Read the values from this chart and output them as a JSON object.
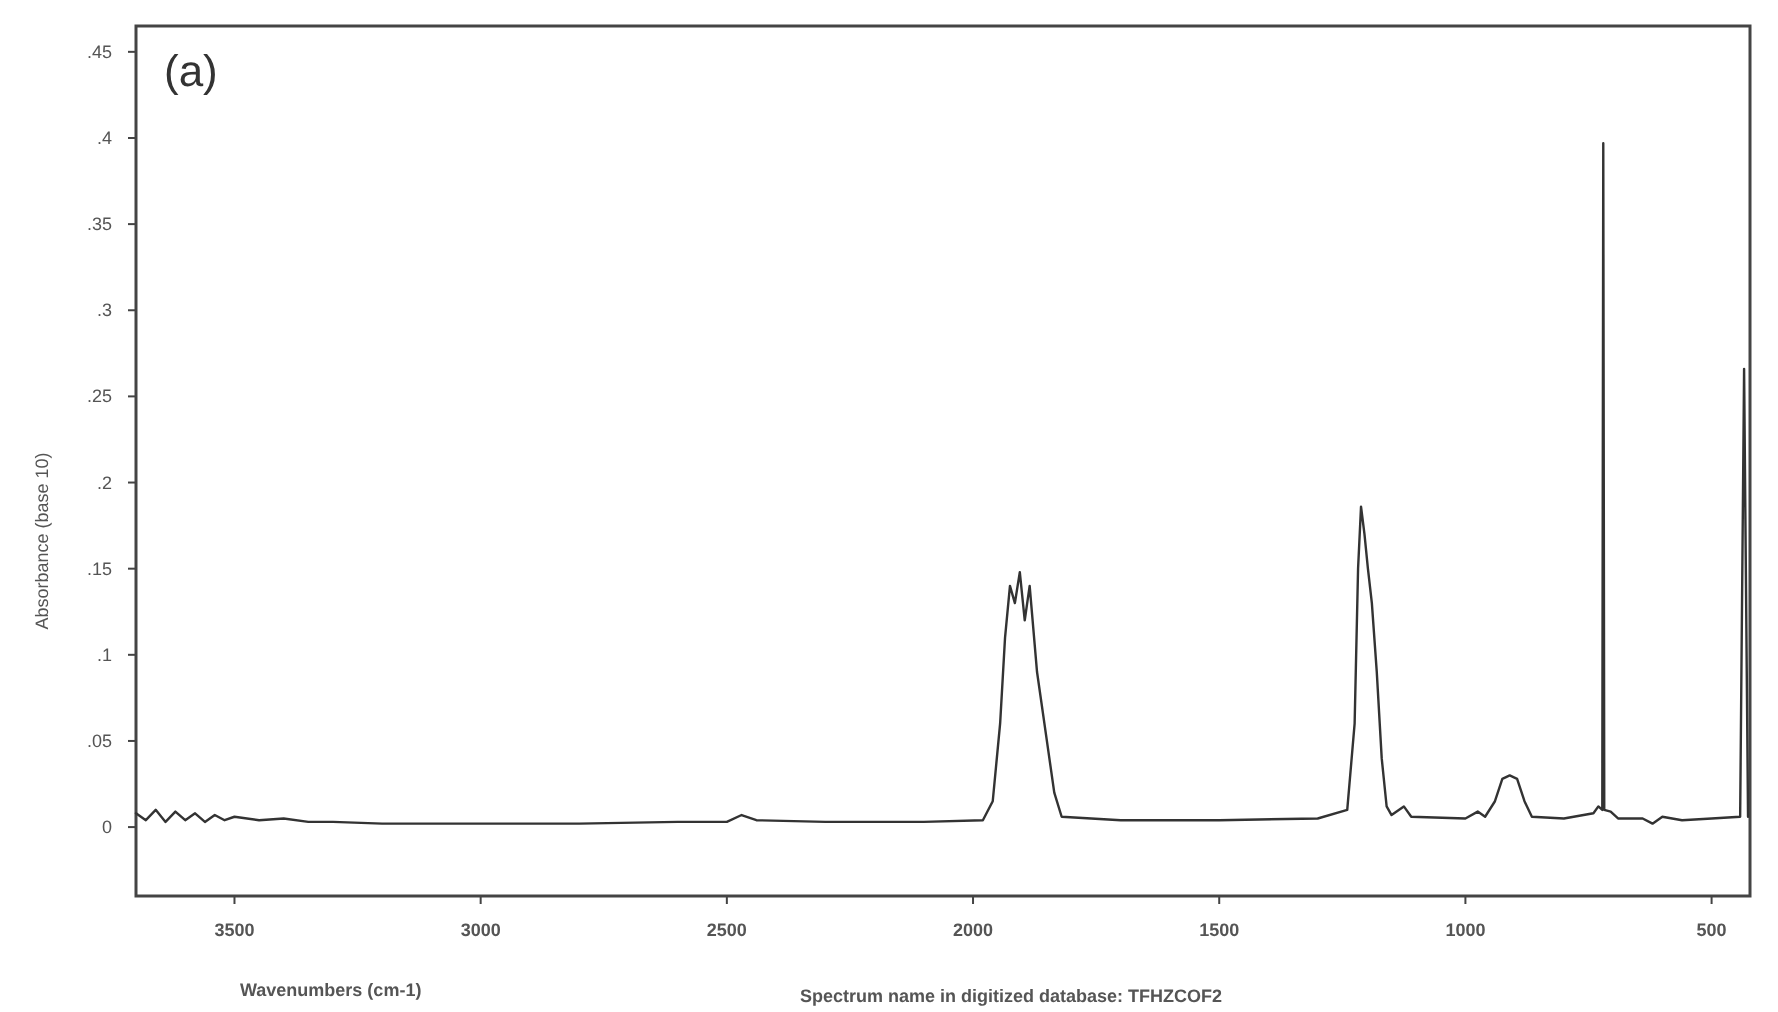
{
  "chart_data": {
    "type": "line",
    "title": "(a)",
    "xlabel": "Wavenumbers (cm-1)",
    "ylabel": "Absorbance (base 10)",
    "annotations": [
      "Spectrum name in digitized database:  TFHZCOF2"
    ],
    "xlim": [
      3700,
      422
    ],
    "ylim": [
      -0.04,
      0.465
    ],
    "xticks": [
      3500,
      3000,
      2500,
      2000,
      1500,
      1000,
      500
    ],
    "yticks": [
      0,
      {
        "value": 0.05,
        "label": ".05"
      },
      {
        "value": 0.1,
        "label": ".1"
      },
      {
        "value": 0.15,
        "label": ".15"
      },
      {
        "value": 0.2,
        "label": ".2"
      },
      {
        "value": 0.25,
        "label": ".25"
      },
      {
        "value": 0.3,
        "label": ".3"
      },
      {
        "value": 0.35,
        "label": ".35"
      },
      {
        "value": 0.4,
        "label": ".4"
      },
      {
        "value": 0.45,
        "label": ".45"
      }
    ],
    "grid": false,
    "marker": "none",
    "line_style": "solid",
    "series": [
      {
        "color": "#333333",
        "x": [
          3700,
          3680,
          3660,
          3640,
          3620,
          3600,
          3580,
          3560,
          3540,
          3520,
          3500,
          3450,
          3400,
          3350,
          3300,
          3200,
          3000,
          2800,
          2600,
          2500,
          2470,
          2440,
          2300,
          2100,
          1980,
          1960,
          1945,
          1935,
          1925,
          1915,
          1905,
          1895,
          1885,
          1870,
          1850,
          1835,
          1820,
          1700,
          1500,
          1300,
          1240,
          1225,
          1218,
          1212,
          1205,
          1198,
          1190,
          1180,
          1170,
          1160,
          1150,
          1125,
          1110,
          1000,
          975,
          960,
          940,
          925,
          910,
          895,
          880,
          865,
          800,
          740,
          730,
          722,
          720,
          718,
          705,
          690,
          640,
          620,
          600,
          560,
          500,
          442,
          434,
          426
        ],
        "values": [
          0.008,
          0.004,
          0.01,
          0.003,
          0.009,
          0.004,
          0.008,
          0.003,
          0.007,
          0.004,
          0.006,
          0.004,
          0.005,
          0.003,
          0.003,
          0.002,
          0.002,
          0.002,
          0.003,
          0.003,
          0.007,
          0.004,
          0.003,
          0.003,
          0.004,
          0.015,
          0.06,
          0.11,
          0.14,
          0.13,
          0.148,
          0.12,
          0.14,
          0.09,
          0.05,
          0.02,
          0.006,
          0.004,
          0.004,
          0.005,
          0.01,
          0.06,
          0.15,
          0.186,
          0.17,
          0.15,
          0.13,
          0.09,
          0.04,
          0.012,
          0.007,
          0.012,
          0.006,
          0.005,
          0.009,
          0.006,
          0.015,
          0.028,
          0.03,
          0.028,
          0.015,
          0.006,
          0.005,
          0.008,
          0.012,
          0.01,
          0.397,
          0.01,
          0.009,
          0.005,
          0.005,
          0.002,
          0.006,
          0.004,
          0.005,
          0.006,
          0.266,
          0.006
        ]
      }
    ]
  }
}
